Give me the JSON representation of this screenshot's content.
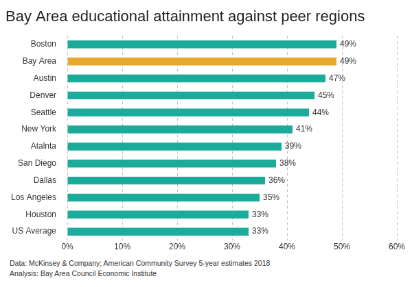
{
  "chart_data": {
    "type": "bar",
    "title": "Bay Area educational attainment against peer regions",
    "categories": [
      "Boston",
      "Bay Area",
      "Austin",
      "Denver",
      "Seattle",
      "New York",
      "Atalnta",
      "San Diego",
      "Dallas",
      "Los Angeles",
      "Houston",
      "US Average"
    ],
    "values": [
      49,
      49,
      47,
      45,
      44,
      41,
      39,
      38,
      36,
      35,
      33,
      33
    ],
    "value_labels": [
      "49%",
      "49%",
      "47%",
      "45%",
      "44%",
      "41%",
      "39%",
      "38%",
      "36%",
      "35%",
      "33%",
      "33%"
    ],
    "colors": [
      "#1aab9b",
      "#e8a82e",
      "#1aab9b",
      "#1aab9b",
      "#1aab9b",
      "#1aab9b",
      "#1aab9b",
      "#1aab9b",
      "#1aab9b",
      "#1aab9b",
      "#1aab9b",
      "#1aab9b"
    ],
    "orientation": "horizontal",
    "xlim": [
      0,
      60
    ],
    "xticks": [
      {
        "value": 0,
        "label": "0%"
      },
      {
        "value": 10,
        "label": "10%"
      },
      {
        "value": 20,
        "label": "20%"
      },
      {
        "value": 30,
        "label": "30%"
      },
      {
        "value": 40,
        "label": "40%"
      },
      {
        "value": 50,
        "label": "50%"
      },
      {
        "value": 60,
        "label": "60%"
      }
    ],
    "grid": true,
    "data_labels": true,
    "annotations": [
      "Data: McKinsey & Company; American Community Survey 5-year estimates 2018",
      "Analysis: Bay Area Council Economic Institute"
    ]
  }
}
